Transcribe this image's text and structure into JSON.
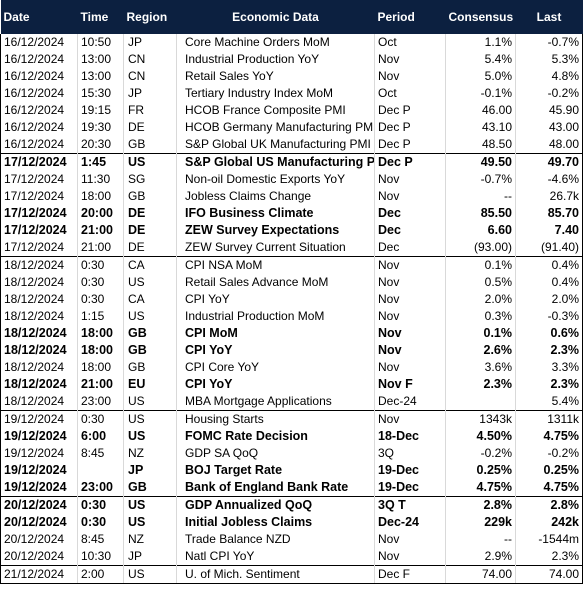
{
  "headers": {
    "date": "Date",
    "time": "Time",
    "region": "Region",
    "event": "Economic Data",
    "period": "Period",
    "consensus": "Consensus",
    "last": "Last"
  },
  "rows": [
    {
      "date": "16/12/2024",
      "time": "10:50",
      "region": "JP",
      "event": "Core Machine Orders MoM",
      "period": "Oct",
      "consensus": "1.1%",
      "last": "-0.7%",
      "bold": false,
      "day_start": false
    },
    {
      "date": "16/12/2024",
      "time": "13:00",
      "region": "CN",
      "event": "Industrial Production YoY",
      "period": "Nov",
      "consensus": "5.4%",
      "last": "5.3%",
      "bold": false,
      "day_start": false
    },
    {
      "date": "16/12/2024",
      "time": "13:00",
      "region": "CN",
      "event": "Retail Sales YoY",
      "period": "Nov",
      "consensus": "5.0%",
      "last": "4.8%",
      "bold": false,
      "day_start": false
    },
    {
      "date": "16/12/2024",
      "time": "15:30",
      "region": "JP",
      "event": "Tertiary Industry Index MoM",
      "period": "Oct",
      "consensus": "-0.1%",
      "last": "-0.2%",
      "bold": false,
      "day_start": false
    },
    {
      "date": "16/12/2024",
      "time": "19:15",
      "region": "FR",
      "event": "HCOB France Composite PMI",
      "period": "Dec P",
      "consensus": "46.00",
      "last": "45.90",
      "bold": false,
      "day_start": false
    },
    {
      "date": "16/12/2024",
      "time": "19:30",
      "region": "DE",
      "event": "HCOB Germany Manufacturing PMI",
      "period": "Dec P",
      "consensus": "43.10",
      "last": "43.00",
      "bold": false,
      "day_start": false
    },
    {
      "date": "16/12/2024",
      "time": "20:30",
      "region": "GB",
      "event": "S&P Global UK Manufacturing PMI",
      "period": "Dec P",
      "consensus": "48.50",
      "last": "48.00",
      "bold": false,
      "day_start": false
    },
    {
      "date": "17/12/2024",
      "time": "1:45",
      "region": "US",
      "event": "S&P Global US Manufacturing PMI",
      "period": "Dec P",
      "consensus": "49.50",
      "last": "49.70",
      "bold": true,
      "day_start": true
    },
    {
      "date": "17/12/2024",
      "time": "11:30",
      "region": "SG",
      "event": "Non-oil Domestic Exports YoY",
      "period": "Nov",
      "consensus": "-0.7%",
      "last": "-4.6%",
      "bold": false,
      "day_start": false
    },
    {
      "date": "17/12/2024",
      "time": "18:00",
      "region": "GB",
      "event": "Jobless Claims Change",
      "period": "Nov",
      "consensus": "--",
      "last": "26.7k",
      "bold": false,
      "day_start": false
    },
    {
      "date": "17/12/2024",
      "time": "20:00",
      "region": "DE",
      "event": "IFO Business Climate",
      "period": "Dec",
      "consensus": "85.50",
      "last": "85.70",
      "bold": true,
      "day_start": false
    },
    {
      "date": "17/12/2024",
      "time": "21:00",
      "region": "DE",
      "event": "ZEW Survey Expectations",
      "period": "Dec",
      "consensus": "6.60",
      "last": "7.40",
      "bold": true,
      "day_start": false
    },
    {
      "date": "17/12/2024",
      "time": "21:00",
      "region": "DE",
      "event": "ZEW Survey Current Situation",
      "period": "Dec",
      "consensus": "(93.00)",
      "last": "(91.40)",
      "bold": false,
      "day_start": false
    },
    {
      "date": "18/12/2024",
      "time": "0:30",
      "region": "CA",
      "event": "CPI NSA MoM",
      "period": "Nov",
      "consensus": "0.1%",
      "last": "0.4%",
      "bold": false,
      "day_start": true
    },
    {
      "date": "18/12/2024",
      "time": "0:30",
      "region": "US",
      "event": "Retail Sales Advance MoM",
      "period": "Nov",
      "consensus": "0.5%",
      "last": "0.4%",
      "bold": false,
      "day_start": false
    },
    {
      "date": "18/12/2024",
      "time": "0:30",
      "region": "CA",
      "event": "CPI YoY",
      "period": "Nov",
      "consensus": "2.0%",
      "last": "2.0%",
      "bold": false,
      "day_start": false
    },
    {
      "date": "18/12/2024",
      "time": "1:15",
      "region": "US",
      "event": "Industrial Production MoM",
      "period": "Nov",
      "consensus": "0.3%",
      "last": "-0.3%",
      "bold": false,
      "day_start": false
    },
    {
      "date": "18/12/2024",
      "time": "18:00",
      "region": "GB",
      "event": "CPI MoM",
      "period": "Nov",
      "consensus": "0.1%",
      "last": "0.6%",
      "bold": true,
      "day_start": false
    },
    {
      "date": "18/12/2024",
      "time": "18:00",
      "region": "GB",
      "event": "CPI YoY",
      "period": "Nov",
      "consensus": "2.6%",
      "last": "2.3%",
      "bold": true,
      "day_start": false
    },
    {
      "date": "18/12/2024",
      "time": "18:00",
      "region": "GB",
      "event": "CPI Core YoY",
      "period": "Nov",
      "consensus": "3.6%",
      "last": "3.3%",
      "bold": false,
      "day_start": false
    },
    {
      "date": "18/12/2024",
      "time": "21:00",
      "region": "EU",
      "event": "CPI YoY",
      "period": "Nov F",
      "consensus": "2.3%",
      "last": "2.3%",
      "bold": true,
      "day_start": false
    },
    {
      "date": "18/12/2024",
      "time": "23:00",
      "region": "US",
      "event": "MBA Mortgage Applications",
      "period": "Dec-24",
      "consensus": "",
      "last": "5.4%",
      "bold": false,
      "day_start": false
    },
    {
      "date": "19/12/2024",
      "time": "0:30",
      "region": "US",
      "event": "Housing Starts",
      "period": "Nov",
      "consensus": "1343k",
      "last": "1311k",
      "bold": false,
      "day_start": true
    },
    {
      "date": "19/12/2024",
      "time": "6:00",
      "region": "US",
      "event": "FOMC Rate Decision",
      "period": "18-Dec",
      "consensus": "4.50%",
      "last": "4.75%",
      "bold": true,
      "day_start": false
    },
    {
      "date": "19/12/2024",
      "time": "8:45",
      "region": "NZ",
      "event": "GDP SA QoQ",
      "period": "3Q",
      "consensus": "-0.2%",
      "last": "-0.2%",
      "bold": false,
      "day_start": false
    },
    {
      "date": "19/12/2024",
      "time": "",
      "region": "JP",
      "event": "BOJ Target Rate",
      "period": "19-Dec",
      "consensus": "0.25%",
      "last": "0.25%",
      "bold": true,
      "day_start": false
    },
    {
      "date": "19/12/2024",
      "time": "23:00",
      "region": "GB",
      "event": "Bank of England Bank Rate",
      "period": "19-Dec",
      "consensus": "4.75%",
      "last": "4.75%",
      "bold": true,
      "day_start": false
    },
    {
      "date": "20/12/2024",
      "time": "0:30",
      "region": "US",
      "event": "GDP Annualized QoQ",
      "period": "3Q T",
      "consensus": "2.8%",
      "last": "2.8%",
      "bold": true,
      "day_start": true
    },
    {
      "date": "20/12/2024",
      "time": "0:30",
      "region": "US",
      "event": "Initial Jobless Claims",
      "period": "Dec-24",
      "consensus": "229k",
      "last": "242k",
      "bold": true,
      "day_start": false
    },
    {
      "date": "20/12/2024",
      "time": "8:45",
      "region": "NZ",
      "event": "Trade Balance NZD",
      "period": "Nov",
      "consensus": "--",
      "last": "-1544m",
      "bold": false,
      "day_start": false
    },
    {
      "date": "20/12/2024",
      "time": "10:30",
      "region": "JP",
      "event": "Natl CPI YoY",
      "period": "Nov",
      "consensus": "2.9%",
      "last": "2.3%",
      "bold": false,
      "day_start": false
    },
    {
      "date": "21/12/2024",
      "time": "2:00",
      "region": "US",
      "event": "U. of Mich. Sentiment",
      "period": "Dec F",
      "consensus": "74.00",
      "last": "74.00",
      "bold": false,
      "day_start": true
    }
  ]
}
